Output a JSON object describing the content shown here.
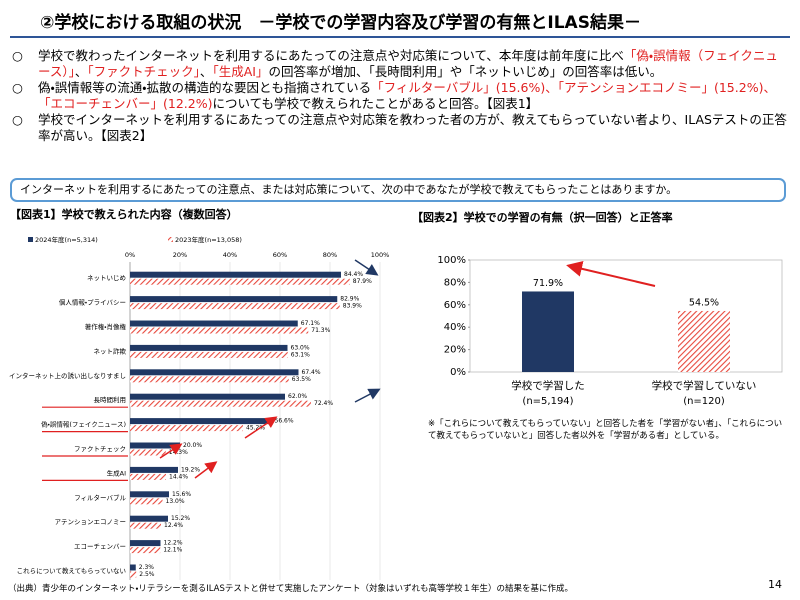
{
  "header": {
    "title": "②学校における取組の状況　－学校での学習内容及び学習の有無とILAS結果－"
  },
  "bullets": [
    {
      "segments": [
        {
          "text": "学校で教わったインターネットを利用するにあたっての注意点や対応策について、本年度は前年度に比べ"
        },
        {
          "text": "「偽・誤情報（フェイクニュース）」",
          "color": "#e02020"
        },
        {
          "text": "、"
        },
        {
          "text": "「ファクトチェック」",
          "color": "#e02020"
        },
        {
          "text": "、"
        },
        {
          "text": "「生成AI」",
          "color": "#e02020"
        },
        {
          "text": "の回答率が増加、「長時間利用」や「ネットいじめ」の回答率は低い。"
        }
      ]
    },
    {
      "segments": [
        {
          "text": "偽・誤情報等の流通・拡散の構造的な要因とも指摘されている"
        },
        {
          "text": "「フィルターバブル」(15.6%)、「アテンションエコノミー」(15.2%)、「エコーチェンバー」(12.2%)",
          "color": "#e02020"
        },
        {
          "text": "についても学校で教えられたことがあると回答。【図表1】"
        }
      ]
    },
    {
      "segments": [
        {
          "text": "学校でインターネットを利用するにあたっての注意点や対応策を教わった者の方が、教えてもらっていない者より、ILASテストの正答率が高い。【図表2】"
        }
      ]
    }
  ],
  "bullet_marker": "○",
  "question": "インターネットを利用するにあたっての注意点、または対応策について、次の中であなたが学校で教えてもらったことはありますか。",
  "chart_data": [
    {
      "type": "hbar",
      "title": "【図表1】学校で教えられた内容（複数回答）",
      "categories": [
        "ネットいじめ",
        "個人情報・プライバシー",
        "著作権・肖像権",
        "ネット詐欺",
        "インターネット上の誘い出しなりすまし",
        "長時間利用",
        "偽・誤情報(フェイクニュース)",
        "ファクトチェック",
        "生成AI",
        "フィルターバブル",
        "アテンションエコノミー",
        "エコーチェンバー",
        "これらについて教えてもらっていない"
      ],
      "series": [
        {
          "name": "2024年度(n=5,314)",
          "color": "#203864",
          "hatch": false,
          "values": [
            84.4,
            82.9,
            67.1,
            63.0,
            67.4,
            62.0,
            56.6,
            20.0,
            19.2,
            15.6,
            15.2,
            12.2,
            2.3
          ],
          "value_labels": [
            "84.4%",
            "82.9%",
            "67.1%",
            "63.0%",
            "67.4%",
            "62.0%",
            "56.6%",
            "20.0%",
            "19.2%",
            "15.6%",
            "15.2%",
            "12.2%",
            "2.3%"
          ]
        },
        {
          "name": "2023年度(n=13,058)",
          "color": "#e8483c",
          "hatch": true,
          "values": [
            87.9,
            83.9,
            71.3,
            63.1,
            63.5,
            72.4,
            45.2,
            14.3,
            14.4,
            13.0,
            12.4,
            12.1,
            2.5
          ],
          "value_labels": [
            "87.9%",
            "83.9%",
            "71.3%",
            "63.1%",
            "63.5%",
            "72.4%",
            "45.2%",
            "14.3%",
            "14.4%",
            "13.0%",
            "12.4%",
            "12.1%",
            "2.5%"
          ]
        }
      ],
      "xlim": [
        0,
        100
      ],
      "xticks": [
        {
          "value": 0,
          "label": "0%"
        },
        {
          "value": 20,
          "label": "20%"
        },
        {
          "value": 40,
          "label": "40%"
        },
        {
          "value": 60,
          "label": "60%"
        },
        {
          "value": 80,
          "label": "80%"
        },
        {
          "value": 100,
          "label": "100%"
        }
      ],
      "grid": true,
      "legend": "top"
    },
    {
      "type": "bar",
      "title": "【図表2】学校での学習の有無（択一回答）と正答率",
      "categories": [
        "学校で学習した",
        "学校で学習していない"
      ],
      "category_notes": [
        "(n=5,194)",
        "(n=120)"
      ],
      "values": [
        71.9,
        54.5
      ],
      "value_labels": [
        "71.9%",
        "54.5%"
      ],
      "colors": [
        "#203864",
        "#e8483c"
      ],
      "hatch": [
        false,
        true
      ],
      "ylim": [
        0,
        100
      ],
      "yticks": [
        {
          "value": 0,
          "label": "0%"
        },
        {
          "value": 20,
          "label": "20%"
        },
        {
          "value": 40,
          "label": "40%"
        },
        {
          "value": 60,
          "label": "60%"
        },
        {
          "value": 80,
          "label": "80%"
        },
        {
          "value": 100,
          "label": "100%"
        }
      ],
      "grid": false,
      "note": "※「これらについて教えてもらっていない」と回答した者を「学習がない者」、「これらについて教えてもらっていないと」回答した者以外を「学習がある者」としている。"
    }
  ],
  "footer": "（出典）青少年のインターネット・リテラシーを測るILASテストと併せて実施したアンケート（対象はいずれも高等学校１年生）の結果を基に作成。",
  "page_number": "14"
}
